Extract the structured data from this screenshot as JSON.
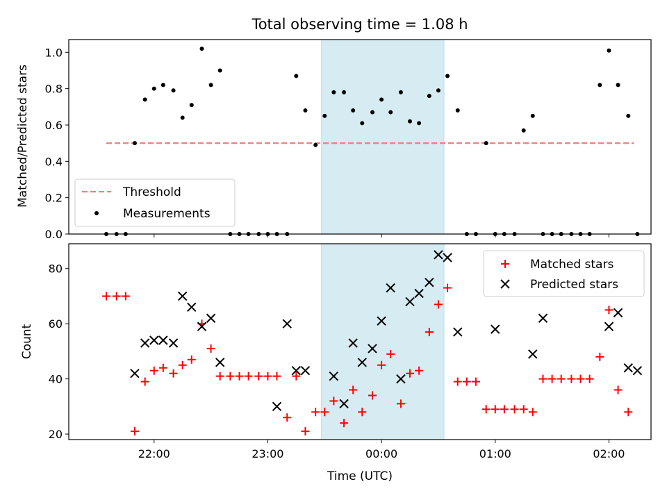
{
  "chart_data": {
    "title": "Total observing time = 1.08 h",
    "xlabel": "Time (UTC)",
    "x_ticks": [
      "22:00",
      "23:00",
      "00:00",
      "01:00",
      "02:00"
    ],
    "x_tick_hours": [
      22,
      23,
      24,
      25,
      26
    ],
    "x_range_hours": [
      21.25,
      26.37
    ],
    "highlight_span_hours": [
      23.47,
      24.55
    ],
    "highlight_color": "#add8e6",
    "top": {
      "type": "scatter",
      "ylabel": "Matched/Predicted stars",
      "ylim": [
        0,
        1.07
      ],
      "y_ticks": [
        0.0,
        0.2,
        0.4,
        0.6,
        0.8,
        1.0
      ],
      "threshold": {
        "name": "Threshold",
        "value": 0.5,
        "x_range_hours": [
          21.58,
          26.22
        ],
        "color": "#f08080"
      },
      "measurements": {
        "name": "Measurements",
        "color": "#000000",
        "x": [
          21.58,
          21.67,
          21.75,
          21.83,
          21.92,
          22.0,
          22.08,
          22.17,
          22.25,
          22.33,
          22.42,
          22.5,
          22.58,
          22.67,
          22.75,
          22.83,
          22.92,
          23.0,
          23.08,
          23.17,
          23.25,
          23.33,
          23.42,
          23.5,
          23.58,
          23.67,
          23.75,
          23.83,
          23.92,
          24.0,
          24.08,
          24.17,
          24.25,
          24.33,
          24.42,
          24.5,
          24.58,
          24.67,
          24.75,
          24.83,
          24.92,
          25.0,
          25.08,
          25.17,
          25.25,
          25.33,
          25.42,
          25.5,
          25.58,
          25.67,
          25.75,
          25.83,
          25.92,
          26.0,
          26.08,
          26.17,
          26.25
        ],
        "y": [
          0.0,
          0.0,
          0.0,
          0.5,
          0.74,
          0.8,
          0.82,
          0.79,
          0.64,
          0.71,
          1.02,
          0.82,
          0.9,
          0.0,
          0.0,
          0.0,
          0.0,
          0.0,
          0.0,
          0.0,
          0.87,
          0.68,
          0.49,
          0.65,
          0.78,
          0.78,
          0.68,
          0.61,
          0.67,
          0.74,
          0.67,
          0.78,
          0.62,
          0.61,
          0.76,
          0.79,
          0.87,
          0.68,
          0.0,
          0.0,
          0.5,
          0.0,
          0.0,
          0.0,
          0.57,
          0.65,
          0.0,
          0.0,
          0.0,
          0.0,
          0.0,
          0.0,
          0.82,
          1.01,
          0.82,
          0.65,
          0.0
        ]
      }
    },
    "bottom": {
      "type": "scatter",
      "ylabel": "Count",
      "ylim": [
        18,
        89
      ],
      "y_ticks": [
        20,
        40,
        60,
        80
      ],
      "matched": {
        "name": "Matched stars",
        "color": "#ff0000",
        "x": [
          21.58,
          21.67,
          21.75,
          21.83,
          21.92,
          22.0,
          22.08,
          22.17,
          22.25,
          22.33,
          22.42,
          22.5,
          22.58,
          22.67,
          22.75,
          22.83,
          22.92,
          23.0,
          23.08,
          23.17,
          23.25,
          23.33,
          23.42,
          23.5,
          23.58,
          23.67,
          23.75,
          23.83,
          23.92,
          24.0,
          24.08,
          24.17,
          24.25,
          24.33,
          24.42,
          24.5,
          24.58,
          24.67,
          24.75,
          24.83,
          24.92,
          25.0,
          25.08,
          25.17,
          25.25,
          25.33,
          25.42,
          25.5,
          25.58,
          25.67,
          25.75,
          25.83,
          25.92,
          26.0,
          26.08,
          26.17
        ],
        "y": [
          70,
          70,
          70,
          21,
          39,
          43,
          44,
          42,
          45,
          47,
          60,
          51,
          41,
          41,
          41,
          41,
          41,
          41,
          41,
          26,
          41,
          21,
          28,
          28,
          32,
          24,
          36,
          28,
          34,
          45,
          49,
          31,
          42,
          43,
          57,
          67,
          73,
          39,
          39,
          39,
          29,
          29,
          29,
          29,
          29,
          28,
          40,
          40,
          40,
          40,
          40,
          40,
          48,
          65,
          36,
          28
        ]
      },
      "predicted": {
        "name": "Predicted stars",
        "color": "#000000",
        "x": [
          21.83,
          21.92,
          22.0,
          22.08,
          22.17,
          22.25,
          22.33,
          22.42,
          22.5,
          22.58,
          23.08,
          23.17,
          23.25,
          23.33,
          23.58,
          23.67,
          23.75,
          23.83,
          23.92,
          24.0,
          24.08,
          24.17,
          24.25,
          24.33,
          24.42,
          24.5,
          24.58,
          24.67,
          25.0,
          25.33,
          25.42,
          26.0,
          26.08,
          26.17,
          26.25
        ],
        "y": [
          42,
          53,
          54,
          54,
          53,
          70,
          66,
          59,
          62,
          46,
          30,
          60,
          43,
          43,
          41,
          31,
          53,
          46,
          51,
          61,
          73,
          40,
          68,
          71,
          75,
          85,
          84,
          57,
          58,
          49,
          62,
          59,
          64,
          44,
          43
        ]
      }
    }
  }
}
